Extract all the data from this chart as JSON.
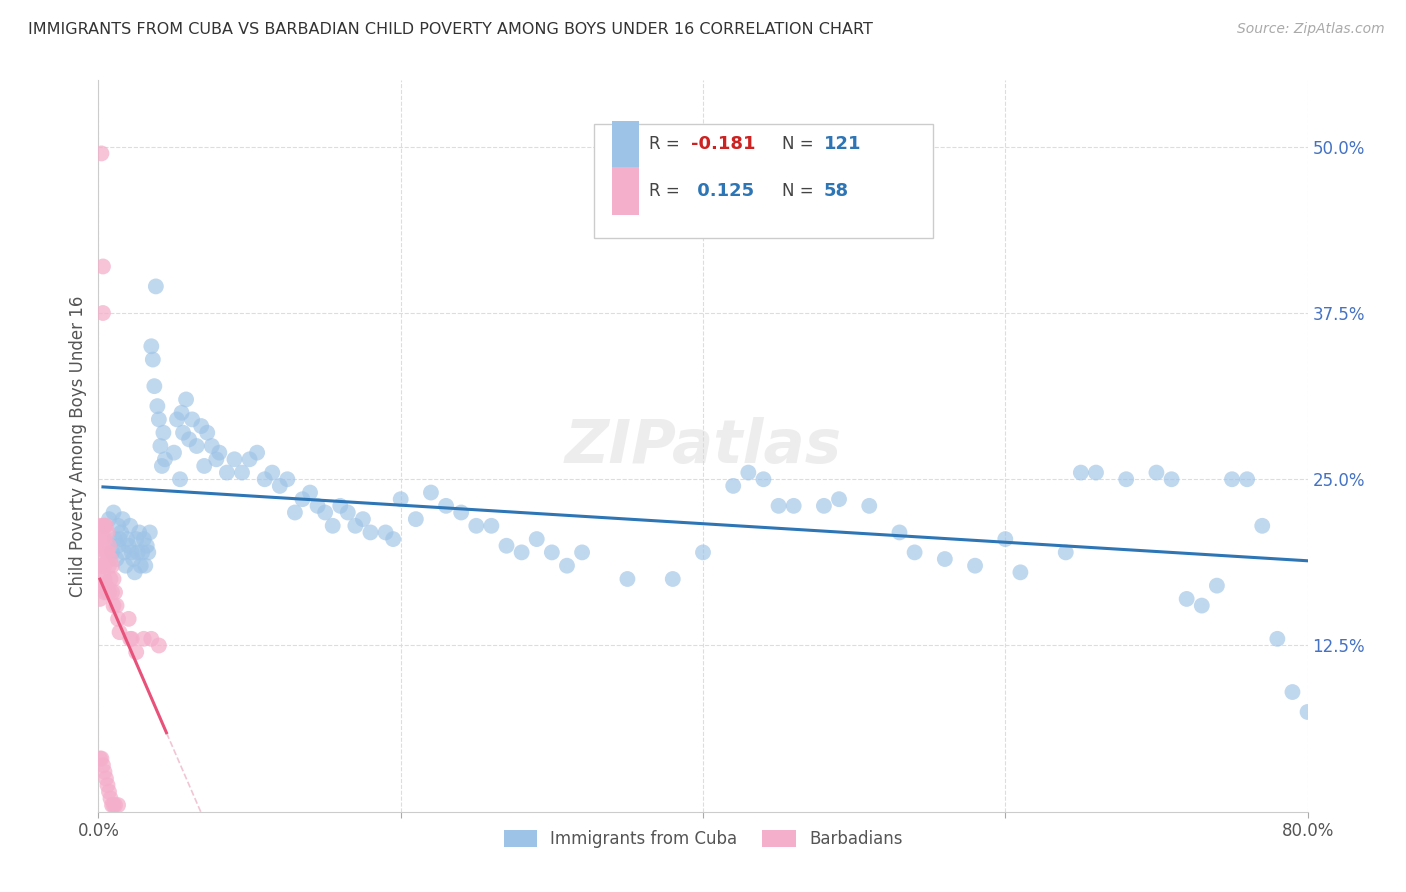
{
  "title": "IMMIGRANTS FROM CUBA VS BARBADIAN CHILD POVERTY AMONG BOYS UNDER 16 CORRELATION CHART",
  "source": "Source: ZipAtlas.com",
  "ylabel": "Child Poverty Among Boys Under 16",
  "xlim": [
    0.0,
    0.8
  ],
  "ylim": [
    0.0,
    0.55
  ],
  "xtick_positions": [
    0.0,
    0.2,
    0.4,
    0.6,
    0.8
  ],
  "xticklabels": [
    "0.0%",
    "",
    "",
    "",
    "80.0%"
  ],
  "yticks_right": [
    0.125,
    0.25,
    0.375,
    0.5
  ],
  "ytick_right_labels": [
    "12.5%",
    "25.0%",
    "37.5%",
    "50.0%"
  ],
  "watermark": "ZIPatlas",
  "legend_label1": "Immigrants from Cuba",
  "legend_label2": "Barbadians",
  "blue_color": "#9DC3E6",
  "pink_color": "#F4AFCA",
  "trend_blue": "#2E75B6",
  "trend_pink": "#E8527A",
  "trend_dashed_color": "#F4AFCA",
  "blue_scatter_x": [
    0.004,
    0.007,
    0.009,
    0.01,
    0.011,
    0.012,
    0.013,
    0.013,
    0.014,
    0.015,
    0.016,
    0.017,
    0.018,
    0.019,
    0.02,
    0.021,
    0.022,
    0.023,
    0.024,
    0.025,
    0.026,
    0.027,
    0.028,
    0.029,
    0.03,
    0.031,
    0.032,
    0.033,
    0.034,
    0.035,
    0.036,
    0.037,
    0.038,
    0.039,
    0.04,
    0.041,
    0.042,
    0.043,
    0.044,
    0.05,
    0.052,
    0.054,
    0.055,
    0.056,
    0.058,
    0.06,
    0.062,
    0.065,
    0.068,
    0.07,
    0.072,
    0.075,
    0.078,
    0.08,
    0.085,
    0.09,
    0.095,
    0.1,
    0.105,
    0.11,
    0.115,
    0.12,
    0.125,
    0.13,
    0.135,
    0.14,
    0.145,
    0.15,
    0.155,
    0.16,
    0.165,
    0.17,
    0.175,
    0.18,
    0.19,
    0.195,
    0.2,
    0.21,
    0.22,
    0.23,
    0.24,
    0.25,
    0.26,
    0.27,
    0.28,
    0.29,
    0.3,
    0.31,
    0.32,
    0.35,
    0.38,
    0.4,
    0.42,
    0.43,
    0.44,
    0.45,
    0.46,
    0.48,
    0.49,
    0.51,
    0.53,
    0.54,
    0.56,
    0.58,
    0.6,
    0.61,
    0.64,
    0.65,
    0.66,
    0.68,
    0.7,
    0.71,
    0.72,
    0.73,
    0.74,
    0.75,
    0.76,
    0.77,
    0.78,
    0.79,
    0.8
  ],
  "blue_scatter_y": [
    0.215,
    0.22,
    0.195,
    0.225,
    0.205,
    0.19,
    0.215,
    0.2,
    0.205,
    0.21,
    0.22,
    0.195,
    0.185,
    0.205,
    0.2,
    0.215,
    0.195,
    0.19,
    0.18,
    0.205,
    0.195,
    0.21,
    0.185,
    0.195,
    0.205,
    0.185,
    0.2,
    0.195,
    0.21,
    0.35,
    0.34,
    0.32,
    0.395,
    0.305,
    0.295,
    0.275,
    0.26,
    0.285,
    0.265,
    0.27,
    0.295,
    0.25,
    0.3,
    0.285,
    0.31,
    0.28,
    0.295,
    0.275,
    0.29,
    0.26,
    0.285,
    0.275,
    0.265,
    0.27,
    0.255,
    0.265,
    0.255,
    0.265,
    0.27,
    0.25,
    0.255,
    0.245,
    0.25,
    0.225,
    0.235,
    0.24,
    0.23,
    0.225,
    0.215,
    0.23,
    0.225,
    0.215,
    0.22,
    0.21,
    0.21,
    0.205,
    0.235,
    0.22,
    0.24,
    0.23,
    0.225,
    0.215,
    0.215,
    0.2,
    0.195,
    0.205,
    0.195,
    0.185,
    0.195,
    0.175,
    0.175,
    0.195,
    0.245,
    0.255,
    0.25,
    0.23,
    0.23,
    0.23,
    0.235,
    0.23,
    0.21,
    0.195,
    0.19,
    0.185,
    0.205,
    0.18,
    0.195,
    0.255,
    0.255,
    0.25,
    0.255,
    0.25,
    0.16,
    0.155,
    0.17,
    0.25,
    0.25,
    0.215,
    0.13,
    0.09,
    0.075
  ],
  "pink_scatter_x": [
    0.001,
    0.001,
    0.001,
    0.001,
    0.001,
    0.001,
    0.002,
    0.002,
    0.002,
    0.002,
    0.002,
    0.003,
    0.003,
    0.003,
    0.003,
    0.003,
    0.003,
    0.003,
    0.004,
    0.004,
    0.004,
    0.004,
    0.004,
    0.004,
    0.005,
    0.005,
    0.005,
    0.005,
    0.006,
    0.006,
    0.006,
    0.006,
    0.007,
    0.007,
    0.007,
    0.007,
    0.008,
    0.008,
    0.008,
    0.009,
    0.009,
    0.009,
    0.01,
    0.01,
    0.01,
    0.011,
    0.011,
    0.012,
    0.013,
    0.013,
    0.014,
    0.02,
    0.021,
    0.022,
    0.025,
    0.03,
    0.035,
    0.04
  ],
  "pink_scatter_y": [
    0.215,
    0.205,
    0.195,
    0.175,
    0.16,
    0.04,
    0.21,
    0.2,
    0.185,
    0.17,
    0.04,
    0.41,
    0.375,
    0.215,
    0.205,
    0.185,
    0.17,
    0.035,
    0.215,
    0.205,
    0.185,
    0.175,
    0.165,
    0.03,
    0.215,
    0.195,
    0.17,
    0.025,
    0.21,
    0.195,
    0.165,
    0.02,
    0.2,
    0.185,
    0.165,
    0.015,
    0.19,
    0.175,
    0.01,
    0.185,
    0.165,
    0.005,
    0.175,
    0.155,
    0.005,
    0.165,
    0.005,
    0.155,
    0.145,
    0.005,
    0.135,
    0.145,
    0.13,
    0.13,
    0.12,
    0.13,
    0.13,
    0.125
  ],
  "pink_outlier_x": [
    0.002
  ],
  "pink_outlier_y": [
    0.495
  ]
}
